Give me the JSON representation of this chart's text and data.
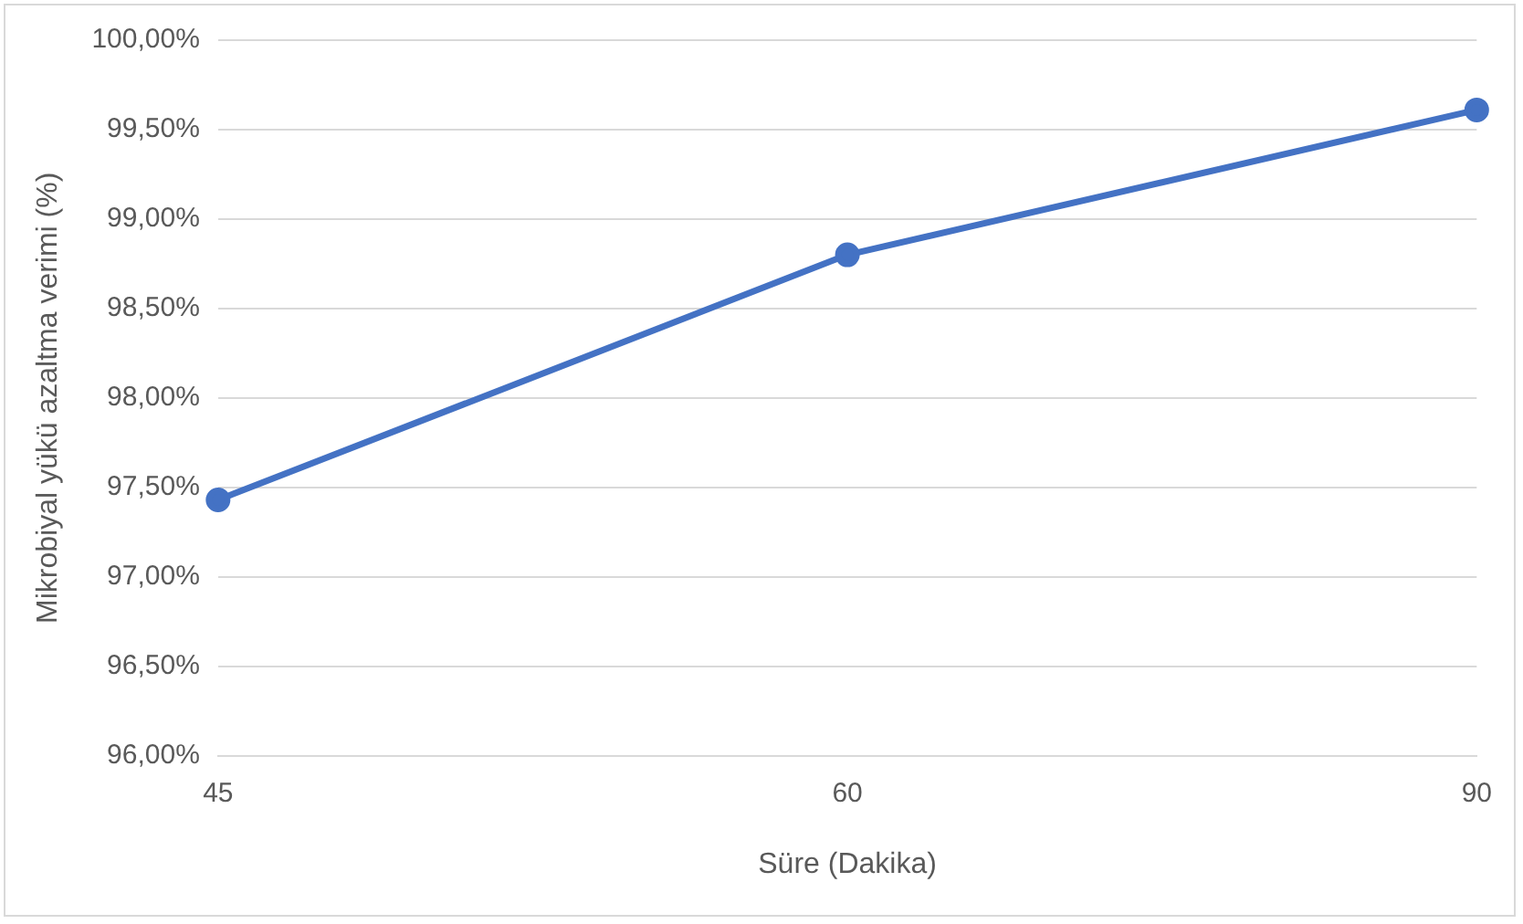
{
  "chart_data": {
    "type": "line",
    "xlabel": "Süre (Dakika)",
    "ylabel": "Mikrobiyal yükü azaltma verimi (%)",
    "categories": [
      "45",
      "60",
      "90"
    ],
    "series": [
      {
        "color": "#4472c4",
        "values": [
          97.43,
          98.8,
          99.61
        ]
      }
    ],
    "ylim": [
      96,
      100
    ],
    "yticks": [
      {
        "value": 96,
        "label": "96,00%"
      },
      {
        "value": 96.5,
        "label": "96,50%"
      },
      {
        "value": 97,
        "label": "97,00%"
      },
      {
        "value": 97.5,
        "label": "97,50%"
      },
      {
        "value": 98,
        "label": "98,00%"
      },
      {
        "value": 98.5,
        "label": "98,50%"
      },
      {
        "value": 99,
        "label": "99,00%"
      },
      {
        "value": 99.5,
        "label": "99,50%"
      },
      {
        "value": 100,
        "label": "100,00%"
      }
    ],
    "grid": "y",
    "marker": "circle",
    "line_style": "solid",
    "legend": false
  }
}
